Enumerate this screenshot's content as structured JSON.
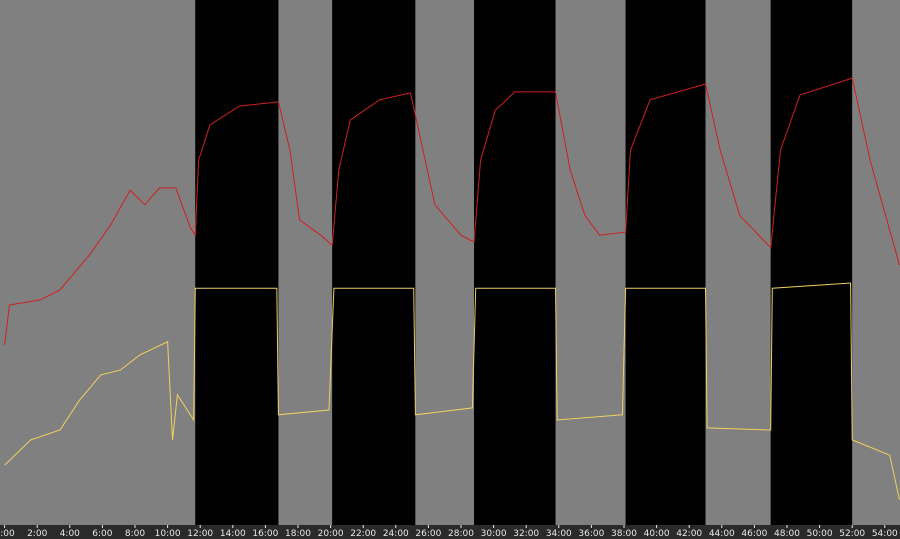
{
  "chart_data": {
    "type": "line",
    "title": "",
    "xlabel": "",
    "ylabel": "",
    "xlim": [
      0,
      54.9
    ],
    "ylim": [
      0,
      100
    ],
    "grid": false,
    "x_ticks": [
      "0:00",
      "2:00",
      "4:00",
      "6:00",
      "8:00",
      "10:00",
      "12:00",
      "14:00",
      "16:00",
      "18:00",
      "20:00",
      "22:00",
      "24:00",
      "26:00",
      "28:00",
      "30:00",
      "32:00",
      "34:00",
      "36:00",
      "38:00",
      "40:00",
      "42:00",
      "44:00",
      "46:00",
      "48:00",
      "50:00",
      "52:00",
      "54:00"
    ],
    "bands": [
      {
        "start": 0,
        "end": 11.7,
        "color": "#808080"
      },
      {
        "start": 11.7,
        "end": 16.8,
        "color": "#000000"
      },
      {
        "start": 16.8,
        "end": 20.1,
        "color": "#808080"
      },
      {
        "start": 20.1,
        "end": 25.2,
        "color": "#000000"
      },
      {
        "start": 25.2,
        "end": 28.8,
        "color": "#808080"
      },
      {
        "start": 28.8,
        "end": 33.8,
        "color": "#000000"
      },
      {
        "start": 33.8,
        "end": 38.1,
        "color": "#808080"
      },
      {
        "start": 38.1,
        "end": 43.0,
        "color": "#000000"
      },
      {
        "start": 43.0,
        "end": 47.0,
        "color": "#808080"
      },
      {
        "start": 47.0,
        "end": 52.0,
        "color": "#000000"
      },
      {
        "start": 52.0,
        "end": 54.9,
        "color": "#808080"
      }
    ],
    "series": [
      {
        "color": "#d02020",
        "points": [
          [
            0,
            34.3
          ],
          [
            0.3,
            41.9
          ],
          [
            2.2,
            42.9
          ],
          [
            3.4,
            44.8
          ],
          [
            5.2,
            51.4
          ],
          [
            6.5,
            57.1
          ],
          [
            7.7,
            63.8
          ],
          [
            8.6,
            61.0
          ],
          [
            9.5,
            64.2
          ],
          [
            10.5,
            64.2
          ],
          [
            11.4,
            56.6
          ],
          [
            11.7,
            55.2
          ],
          [
            11.9,
            69.5
          ],
          [
            12.6,
            76.2
          ],
          [
            14.4,
            79.8
          ],
          [
            16.8,
            80.6
          ],
          [
            17.5,
            71.4
          ],
          [
            18.1,
            58.1
          ],
          [
            19.4,
            55.2
          ],
          [
            20.1,
            53.3
          ],
          [
            20.5,
            67.6
          ],
          [
            21.2,
            77.1
          ],
          [
            23.0,
            81.0
          ],
          [
            24.9,
            82.3
          ],
          [
            25.4,
            75.2
          ],
          [
            26.4,
            61.0
          ],
          [
            28.0,
            55.2
          ],
          [
            28.8,
            53.9
          ],
          [
            29.2,
            69.5
          ],
          [
            30.1,
            79.0
          ],
          [
            31.3,
            82.5
          ],
          [
            33.8,
            82.5
          ],
          [
            34.7,
            67.6
          ],
          [
            35.6,
            59.0
          ],
          [
            36.5,
            55.2
          ],
          [
            38.1,
            55.8
          ],
          [
            38.4,
            71.4
          ],
          [
            39.6,
            81.0
          ],
          [
            43.0,
            84.0
          ],
          [
            43.9,
            71.4
          ],
          [
            45.1,
            59.0
          ],
          [
            47.0,
            52.8
          ],
          [
            47.6,
            71.4
          ],
          [
            48.8,
            81.9
          ],
          [
            52.0,
            85.1
          ],
          [
            53.1,
            69.5
          ],
          [
            54.9,
            49.5
          ]
        ]
      },
      {
        "color": "#f0d060",
        "points": [
          [
            0,
            11.4
          ],
          [
            1.6,
            16.2
          ],
          [
            3.4,
            18.1
          ],
          [
            4.6,
            23.8
          ],
          [
            5.9,
            28.6
          ],
          [
            7.1,
            29.5
          ],
          [
            8.3,
            32.4
          ],
          [
            10.0,
            34.9
          ],
          [
            10.3,
            16.2
          ],
          [
            10.6,
            24.8
          ],
          [
            11.6,
            20.0
          ],
          [
            11.7,
            45.1
          ],
          [
            16.7,
            45.1
          ],
          [
            16.8,
            21.0
          ],
          [
            19.9,
            21.9
          ],
          [
            20.2,
            45.1
          ],
          [
            25.1,
            45.1
          ],
          [
            25.2,
            21.0
          ],
          [
            28.7,
            22.3
          ],
          [
            28.9,
            45.1
          ],
          [
            33.8,
            45.1
          ],
          [
            33.9,
            20.0
          ],
          [
            37.9,
            21.0
          ],
          [
            38.1,
            45.1
          ],
          [
            43.0,
            45.1
          ],
          [
            43.1,
            18.5
          ],
          [
            47.0,
            18.1
          ],
          [
            47.1,
            45.1
          ],
          [
            51.9,
            46.1
          ],
          [
            52.0,
            16.2
          ],
          [
            54.3,
            13.3
          ],
          [
            54.9,
            4.8
          ]
        ]
      }
    ]
  }
}
